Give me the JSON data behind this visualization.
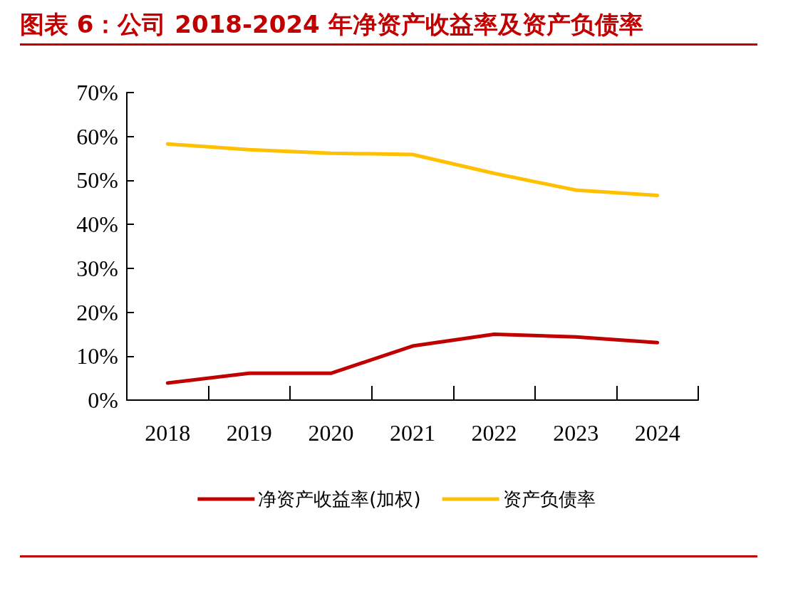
{
  "chart_data": {
    "type": "line",
    "title": "图表 6：公司 2018-2024 年净资产收益率及资产负债率",
    "categories": [
      "2018",
      "2019",
      "2020",
      "2021",
      "2022",
      "2023",
      "2024"
    ],
    "series": [
      {
        "name": "净资产收益率(加权)",
        "color": "#c00000",
        "values": [
          3.9,
          6.1,
          6.1,
          12.3,
          15.0,
          14.4,
          13.1
        ]
      },
      {
        "name": "资产负债率",
        "color": "#ffc000",
        "values": [
          58.3,
          57.0,
          56.2,
          55.9,
          51.6,
          47.8,
          46.6
        ]
      }
    ],
    "ylim": [
      0,
      70
    ],
    "yticks": [
      {
        "value": 0,
        "label": "0%"
      },
      {
        "value": 10,
        "label": "10%"
      },
      {
        "value": 20,
        "label": "20%"
      },
      {
        "value": 30,
        "label": "30%"
      },
      {
        "value": 40,
        "label": "40%"
      },
      {
        "value": 50,
        "label": "50%"
      },
      {
        "value": 60,
        "label": "60%"
      },
      {
        "value": 70,
        "label": "70%"
      }
    ],
    "grid": false,
    "legend": "bottom",
    "marker": "none",
    "line_style": "solid"
  }
}
